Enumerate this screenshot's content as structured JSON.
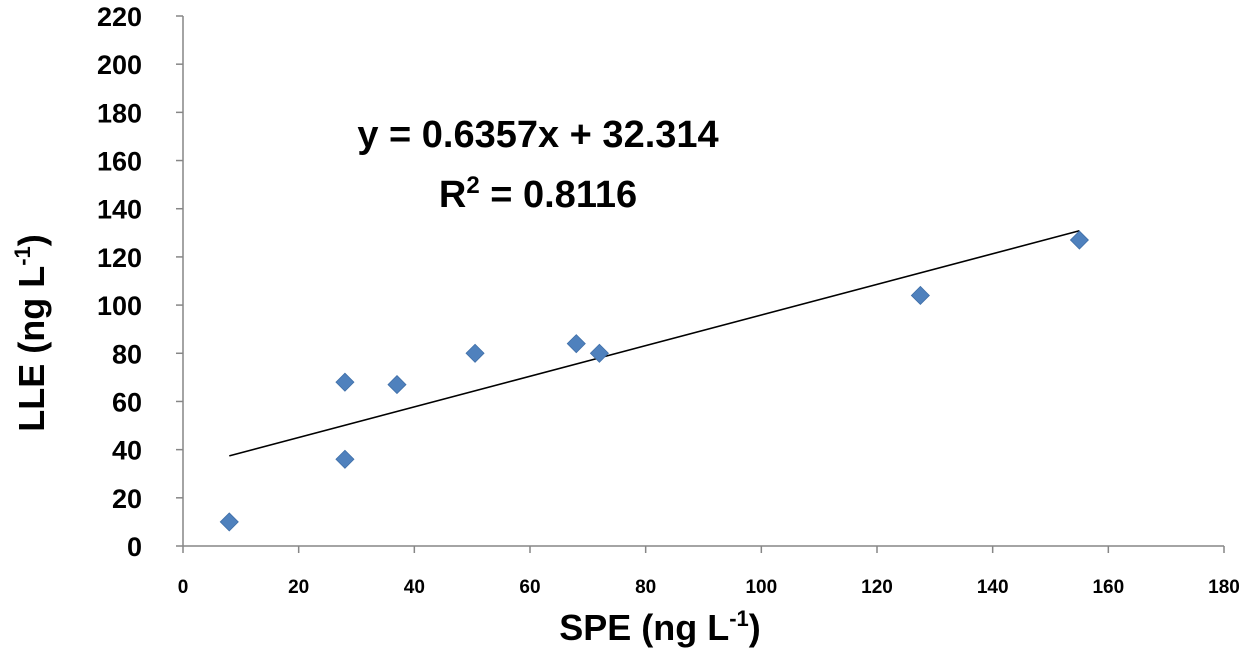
{
  "chart_data": {
    "type": "scatter",
    "xlim": [
      0,
      180
    ],
    "ylim": [
      0,
      220
    ],
    "x_ticks": [
      0,
      20,
      40,
      60,
      80,
      100,
      120,
      140,
      160,
      180
    ],
    "y_ticks": [
      0,
      20,
      40,
      60,
      80,
      100,
      120,
      140,
      160,
      180,
      200,
      220
    ],
    "xlabel": {
      "main": "SPE (ng L",
      "sup": "-1",
      "end": ")"
    },
    "ylabel": {
      "main": "LLE (ng L",
      "sup": "-1",
      "end": ")"
    },
    "grid": false,
    "series": [
      {
        "marker": "diamond",
        "color": "#4F81BD",
        "points": [
          {
            "x": 8,
            "y": 10
          },
          {
            "x": 28,
            "y": 36
          },
          {
            "x": 28,
            "y": 68
          },
          {
            "x": 37,
            "y": 67
          },
          {
            "x": 50.5,
            "y": 80
          },
          {
            "x": 68,
            "y": 84
          },
          {
            "x": 72,
            "y": 80
          },
          {
            "x": 127.5,
            "y": 104
          },
          {
            "x": 155,
            "y": 127
          }
        ]
      }
    ],
    "trendline": {
      "slope": 0.6357,
      "intercept": 32.314,
      "x_range": [
        8,
        155
      ],
      "color": "#000000"
    },
    "equation": {
      "line1": "y = 0.6357x + 32.314",
      "line2_main": "R",
      "line2_sup": "2",
      "line2_end": " = 0.8116"
    }
  }
}
